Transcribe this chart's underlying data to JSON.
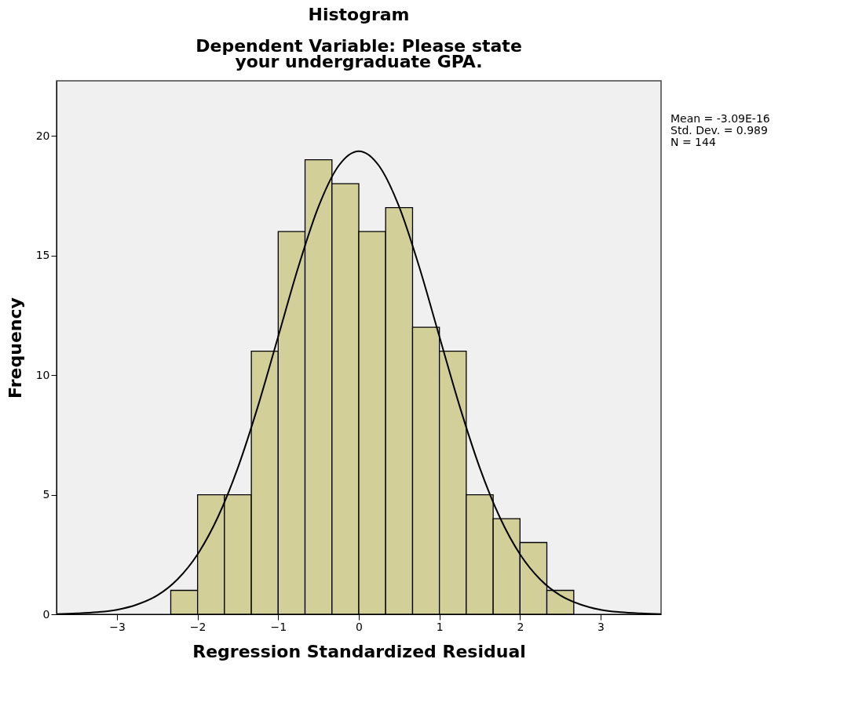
{
  "chart_data": {
    "type": "histogram",
    "title": "Histogram",
    "subtitle": "Dependent Variable: Please state\nyour undergraduate GPA.",
    "xlabel": "Regression Standardized Residual",
    "ylabel": "Frequency",
    "series": [
      {
        "color": "#d3cf99",
        "bins": [
          -2.333,
          -2.0,
          -1.667,
          -1.333,
          -1.0,
          -0.667,
          -0.333,
          0.0,
          0.333,
          0.667,
          1.0,
          1.333,
          1.667,
          2.0,
          2.333,
          2.667
        ],
        "values": [
          1,
          5,
          5,
          11,
          16,
          19,
          18,
          16,
          17,
          12,
          11,
          5,
          4,
          3,
          1
        ]
      },
      {
        "type": "line",
        "color": "#000000",
        "x": [
          -3.75,
          -3.5,
          -3.25,
          -3.0,
          -2.75,
          -2.5,
          -2.25,
          -2.0,
          -1.75,
          -1.5,
          -1.25,
          -1.0,
          -0.75,
          -0.5,
          -0.25,
          0.0,
          0.25,
          0.5,
          0.75,
          1.0,
          1.25,
          1.5,
          1.75,
          2.0,
          2.25,
          2.5,
          2.75,
          3.0,
          3.25,
          3.5,
          3.75
        ],
        "values": [
          0.01,
          0.04,
          0.09,
          0.19,
          0.41,
          0.79,
          1.46,
          2.51,
          4.05,
          6.13,
          8.71,
          11.61,
          14.52,
          17.04,
          18.75,
          19.36,
          18.75,
          17.04,
          14.52,
          11.61,
          8.71,
          6.13,
          4.05,
          2.51,
          1.46,
          0.79,
          0.41,
          0.19,
          0.09,
          0.04,
          0.01
        ]
      }
    ],
    "xlim": [
      -3.75,
      3.75
    ],
    "ylim": [
      0,
      22.3
    ],
    "xticks": [
      -3,
      -2,
      -1,
      0,
      1,
      2,
      3
    ],
    "yticks": [
      0,
      5,
      10,
      15,
      20
    ],
    "grid": false,
    "annotations": [
      "Mean = -3.09E-16",
      "Std. Dev. = 0.989",
      "N = 144"
    ]
  }
}
